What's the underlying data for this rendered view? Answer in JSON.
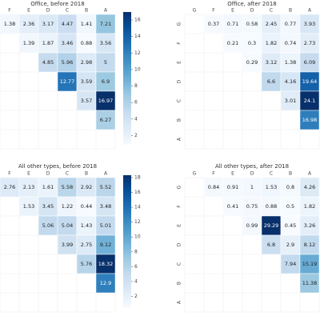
{
  "chart_data": [
    {
      "type": "heatmap",
      "title": "Office, before 2018",
      "x": [
        "F",
        "E",
        "D",
        "C",
        "B",
        "A"
      ],
      "y": [
        null,
        null,
        null,
        null,
        null,
        null,
        null
      ],
      "values": [
        [
          1.38,
          2.36,
          3.17,
          4.47,
          1.41,
          7.21
        ],
        [
          null,
          1.39,
          1.87,
          3.46,
          0.88,
          3.56
        ],
        [
          null,
          null,
          4.85,
          5.96,
          2.98,
          5
        ],
        [
          null,
          null,
          null,
          12.77,
          3.59,
          6.9
        ],
        [
          null,
          null,
          null,
          null,
          3.57,
          16.97
        ],
        [
          null,
          null,
          null,
          null,
          null,
          6.27
        ],
        [
          null,
          null,
          null,
          null,
          null,
          null
        ]
      ],
      "clim": [
        0.88,
        16.97
      ],
      "cticks": [
        2,
        4,
        6,
        8,
        10,
        12,
        14,
        16
      ]
    },
    {
      "type": "heatmap",
      "title": "Office, after 2018",
      "x": [
        "G",
        "F",
        "E",
        "D",
        "C",
        "B",
        "A"
      ],
      "y": [
        "G",
        "F",
        "E",
        "D",
        "C",
        "B",
        "A"
      ],
      "values": [
        [
          null,
          0.37,
          0.71,
          0.58,
          2.45,
          0.77,
          3.93
        ],
        [
          null,
          null,
          0.21,
          0.3,
          1.82,
          0.74,
          2.73
        ],
        [
          null,
          null,
          null,
          0.29,
          3.12,
          1.38,
          6.09
        ],
        [
          null,
          null,
          null,
          null,
          6.6,
          4.16,
          19.64
        ],
        [
          null,
          null,
          null,
          null,
          null,
          3.01,
          24.1
        ],
        [
          null,
          null,
          null,
          null,
          null,
          null,
          16.98
        ],
        [
          null,
          null,
          null,
          null,
          null,
          null,
          null
        ]
      ],
      "clim": [
        0.21,
        24.1
      ]
    },
    {
      "type": "heatmap",
      "title": "All other types, before 2018",
      "x": [
        "F",
        "E",
        "D",
        "C",
        "B",
        "A"
      ],
      "y": [
        null,
        null,
        null,
        null,
        null,
        null,
        null
      ],
      "values": [
        [
          2.76,
          2.13,
          1.61,
          5.58,
          2.92,
          5.52
        ],
        [
          null,
          1.53,
          3.45,
          1.22,
          0.44,
          3.48
        ],
        [
          null,
          null,
          5.06,
          5.04,
          1.43,
          5.01
        ],
        [
          null,
          null,
          null,
          3.99,
          2.75,
          9.12
        ],
        [
          null,
          null,
          null,
          null,
          5.76,
          18.32
        ],
        [
          null,
          null,
          null,
          null,
          null,
          12.9
        ],
        [
          null,
          null,
          null,
          null,
          null,
          null
        ]
      ],
      "clim": [
        0.44,
        18.32
      ],
      "cticks": [
        2,
        4,
        6,
        8,
        10,
        12,
        14,
        16,
        18
      ]
    },
    {
      "type": "heatmap",
      "title": "All other types, after 2018",
      "x": [
        "G",
        "F",
        "E",
        "D",
        "C",
        "B",
        "A"
      ],
      "y": [
        "G",
        "F",
        "E",
        "D",
        "C",
        "B",
        "A"
      ],
      "values": [
        [
          null,
          0.84,
          0.91,
          1,
          1.53,
          0.8,
          4.26
        ],
        [
          null,
          null,
          0.41,
          0.75,
          0.88,
          0.5,
          1.82
        ],
        [
          null,
          null,
          null,
          0.99,
          29.29,
          0.45,
          3.26
        ],
        [
          null,
          null,
          null,
          null,
          6.8,
          2.9,
          8.12
        ],
        [
          null,
          null,
          null,
          null,
          null,
          7.94,
          15.19
        ],
        [
          null,
          null,
          null,
          null,
          null,
          null,
          11.38
        ],
        [
          null,
          null,
          null,
          null,
          null,
          null,
          null
        ]
      ],
      "clim": [
        0.41,
        29.29
      ]
    }
  ]
}
